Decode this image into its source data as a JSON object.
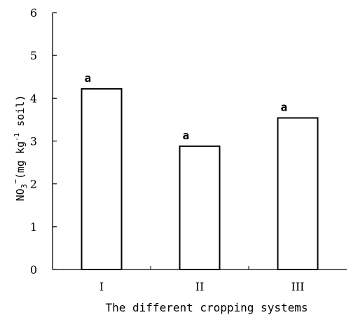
{
  "chart_data": {
    "type": "bar",
    "title": "",
    "categories": [
      "I",
      "II",
      "III"
    ],
    "values": [
      4.22,
      2.88,
      3.54
    ],
    "data_labels": [
      "a",
      "a",
      "a"
    ],
    "xlabel": "The different cropping systems",
    "ylabel": {
      "prefix": "NO",
      "sub": "3",
      "sup_ion": "−",
      "mid": "(mg kg",
      "sup_unit": "-1",
      "end": " soil)"
    },
    "ylim": [
      0,
      6
    ],
    "yticks": [
      "0",
      "1",
      "2",
      "3",
      "4",
      "5",
      "6"
    ],
    "grid": false,
    "legend": "none",
    "colors": {
      "bar_fill": "#ffffff",
      "bar_stroke": "#000000",
      "axis": "#000000"
    }
  }
}
